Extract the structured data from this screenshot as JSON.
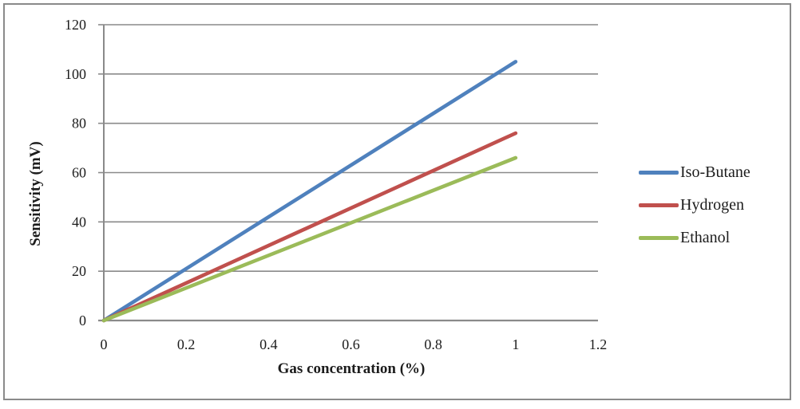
{
  "figure": {
    "background": "#ffffff",
    "border_color": "#8a8a8a"
  },
  "chart_data": {
    "type": "line",
    "title": "",
    "xlabel": "Gas concentration (%)",
    "ylabel": "Sensitivity (mV)",
    "xlim": [
      0,
      1.2
    ],
    "ylim": [
      0,
      120
    ],
    "xticks": [
      0,
      0.2,
      0.4,
      0.6,
      0.8,
      1,
      1.2
    ],
    "yticks": [
      0,
      20,
      40,
      60,
      80,
      100,
      120
    ],
    "grid": "horizontal-only",
    "gridline_color": "#8a8a8a",
    "axis_color": "#8a8a8a",
    "legend_position": "right",
    "series": [
      {
        "name": "Iso-Butane",
        "color": "#4f81bd",
        "x": [
          0,
          1
        ],
        "y": [
          0,
          105
        ]
      },
      {
        "name": "Hydrogen",
        "color": "#c0504d",
        "x": [
          0,
          1
        ],
        "y": [
          0,
          76
        ]
      },
      {
        "name": "Ethanol",
        "color": "#9bbb59",
        "x": [
          0,
          1
        ],
        "y": [
          0,
          66
        ]
      }
    ]
  }
}
